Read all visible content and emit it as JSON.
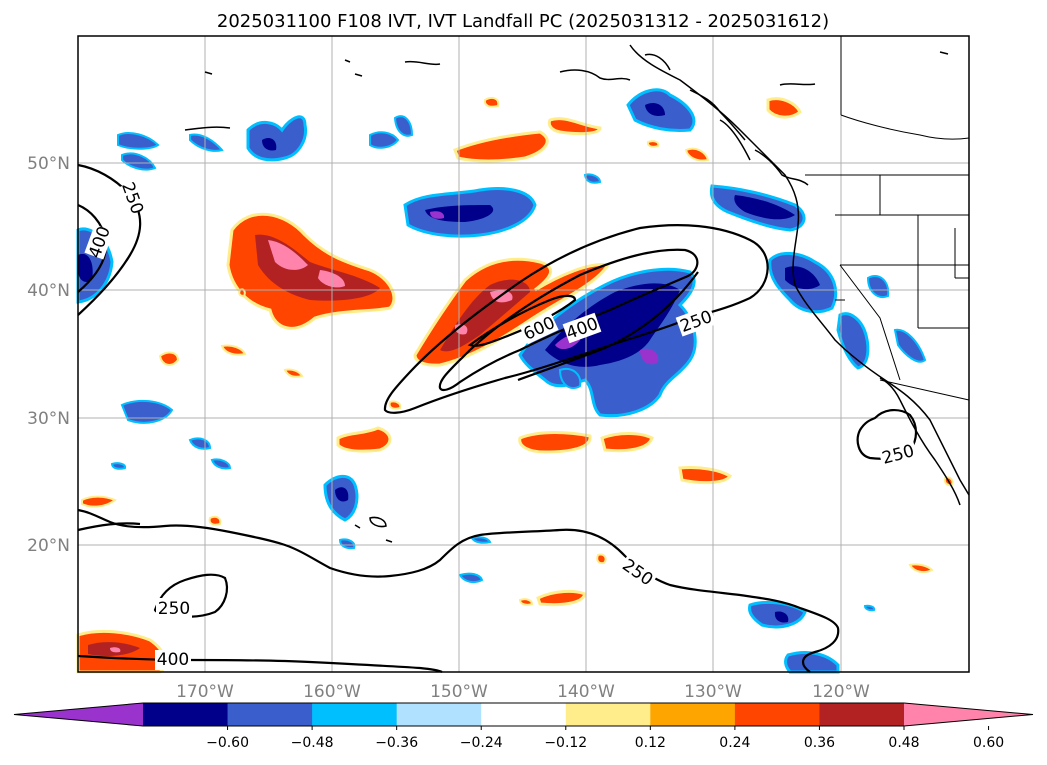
{
  "title": "2025031100 F108 IVT, IVT Landfall PC (2025031312 - 2025031612)",
  "map": {
    "latitude_labels": [
      "50°N",
      "40°N",
      "30°N",
      "20°N"
    ],
    "longitude_labels": [
      "170°W",
      "160°W",
      "150°W",
      "140°W",
      "130°W",
      "120°W"
    ],
    "grid": true
  },
  "contour_labels": [
    {
      "text": "250",
      "id": "a"
    },
    {
      "text": "400",
      "id": "b"
    },
    {
      "text": "600",
      "id": "c"
    },
    {
      "text": "400",
      "id": "d"
    },
    {
      "text": "250",
      "id": "e"
    },
    {
      "text": "250",
      "id": "f"
    },
    {
      "text": "250",
      "id": "g"
    },
    {
      "text": "250",
      "id": "h"
    },
    {
      "text": "400",
      "id": "i"
    }
  ],
  "colorbar": {
    "colors": [
      "#9a32cd",
      "#00008b",
      "#3a5fcd",
      "#00bfff",
      "#b0e2ff",
      "#ffffff",
      "#ffec8b",
      "#ffa500",
      "#ff4500",
      "#b22222",
      "#ff83aa"
    ],
    "tick_labels": [
      "−0.60",
      "−0.48",
      "−0.36",
      "−0.24",
      "−0.12",
      "0.12",
      "0.24",
      "0.36",
      "0.48",
      "0.60"
    ]
  },
  "shading_colors": {
    "positive_outline": "#ffec8b",
    "positive_1": "#ff4500",
    "positive_2": "#b22222",
    "positive_3": "#ff83aa",
    "negative_outline": "#00bfff",
    "negative_1": "#3a5fcd",
    "negative_2": "#00008b",
    "negative_3": "#9a32cd"
  }
}
